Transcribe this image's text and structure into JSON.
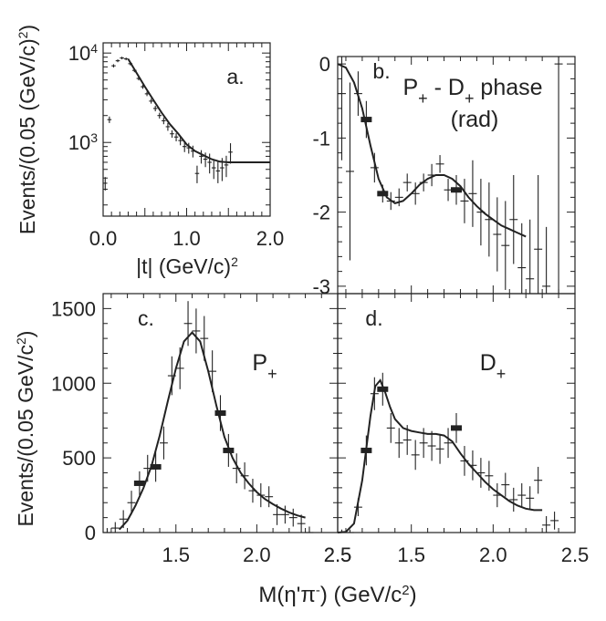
{
  "chart_data": [
    {
      "panel": "a",
      "type": "scatter",
      "label": "a.",
      "xlabel": "|t| (GeV/c)",
      "xlabel_sup": "2",
      "ylabel": "Events/(0.05 (GeV/c)",
      "ylabel_sup": "2",
      "ylabel_close": ")",
      "xlim": [
        0,
        2
      ],
      "ylim": [
        150,
        13000
      ],
      "yscale": "log",
      "xticks": [
        0,
        1,
        2
      ],
      "xtick_labels": [
        "0.0",
        "1.0",
        "2.0"
      ],
      "yticks": [
        1000,
        10000
      ],
      "ytick_labels": [
        {
          "base": "10",
          "exp": "3"
        },
        {
          "base": "10",
          "exp": "4"
        }
      ],
      "points": [
        {
          "x": 0.025,
          "y": 350,
          "ey": 60
        },
        {
          "x": 0.075,
          "y": 1800,
          "ey": 150
        },
        {
          "x": 0.125,
          "y": 7200,
          "ey": 300
        },
        {
          "x": 0.175,
          "y": 8200,
          "ey": 300
        },
        {
          "x": 0.225,
          "y": 8800,
          "ey": 300
        },
        {
          "x": 0.275,
          "y": 8600,
          "ey": 300
        },
        {
          "x": 0.325,
          "y": 7600,
          "ey": 300
        },
        {
          "x": 0.375,
          "y": 6400,
          "ey": 300
        },
        {
          "x": 0.425,
          "y": 5200,
          "ey": 250
        },
        {
          "x": 0.475,
          "y": 4200,
          "ey": 220
        },
        {
          "x": 0.525,
          "y": 3500,
          "ey": 200
        },
        {
          "x": 0.575,
          "y": 2900,
          "ey": 180
        },
        {
          "x": 0.625,
          "y": 2400,
          "ey": 170
        },
        {
          "x": 0.675,
          "y": 2000,
          "ey": 150
        },
        {
          "x": 0.725,
          "y": 1750,
          "ey": 150
        },
        {
          "x": 0.775,
          "y": 1500,
          "ey": 150
        },
        {
          "x": 0.825,
          "y": 1250,
          "ey": 120
        },
        {
          "x": 0.875,
          "y": 1150,
          "ey": 120
        },
        {
          "x": 0.925,
          "y": 1050,
          "ey": 120
        },
        {
          "x": 0.975,
          "y": 900,
          "ey": 120
        },
        {
          "x": 1.025,
          "y": 870,
          "ey": 120
        },
        {
          "x": 1.075,
          "y": 800,
          "ey": 120
        },
        {
          "x": 1.125,
          "y": 450,
          "ey": 100
        },
        {
          "x": 1.175,
          "y": 700,
          "ey": 120
        },
        {
          "x": 1.225,
          "y": 650,
          "ey": 120
        },
        {
          "x": 1.275,
          "y": 600,
          "ey": 150
        },
        {
          "x": 1.325,
          "y": 520,
          "ey": 130
        },
        {
          "x": 1.375,
          "y": 480,
          "ey": 130
        },
        {
          "x": 1.425,
          "y": 520,
          "ey": 150
        },
        {
          "x": 1.475,
          "y": 560,
          "ey": 150
        },
        {
          "x": 1.525,
          "y": 780,
          "ey": 200
        }
      ],
      "fit": [
        [
          0.3,
          8600
        ],
        [
          0.4,
          6000
        ],
        [
          0.5,
          4200
        ],
        [
          0.6,
          3000
        ],
        [
          0.7,
          2150
        ],
        [
          0.8,
          1600
        ],
        [
          0.9,
          1250
        ],
        [
          1.0,
          950
        ],
        [
          1.1,
          800
        ],
        [
          1.2,
          720
        ],
        [
          1.3,
          650
        ],
        [
          1.4,
          610
        ],
        [
          1.5,
          600
        ],
        [
          1.6,
          600
        ],
        [
          1.7,
          600
        ],
        [
          1.8,
          600
        ],
        [
          1.9,
          600
        ],
        [
          2.0,
          600
        ]
      ]
    },
    {
      "panel": "b",
      "type": "scatter",
      "label": "b.",
      "title_line1": "P",
      "title_sub1": "+",
      "title_mid": " - D",
      "title_sub2": "+",
      "title_tail": " phase",
      "title_line2": "(rad)",
      "xlim": [
        1.05,
        2.5
      ],
      "ylim": [
        -3.1,
        0.1
      ],
      "yticks": [
        0,
        -1,
        -2,
        -3
      ],
      "ytick_labels": [
        "0",
        "-1",
        "-2",
        "-3"
      ],
      "points": [
        {
          "x": 1.075,
          "y": -0.4,
          "ey": 0.9
        },
        {
          "x": 1.125,
          "y": -1.45,
          "ey": 1.2
        },
        {
          "x": 1.175,
          "y": -0.4,
          "ey": 0.3
        },
        {
          "x": 1.225,
          "y": -0.75,
          "ey": 0.25
        },
        {
          "x": 1.275,
          "y": -1.4,
          "ey": 0.2
        },
        {
          "x": 1.325,
          "y": -1.75,
          "ey": 0.12
        },
        {
          "x": 1.375,
          "y": -1.85,
          "ey": 0.12
        },
        {
          "x": 1.425,
          "y": -1.8,
          "ey": 0.12
        },
        {
          "x": 1.475,
          "y": -1.6,
          "ey": 0.12
        },
        {
          "x": 1.525,
          "y": -1.75,
          "ey": 0.15
        },
        {
          "x": 1.575,
          "y": -1.6,
          "ey": 0.12
        },
        {
          "x": 1.625,
          "y": -1.5,
          "ey": 0.15
        },
        {
          "x": 1.675,
          "y": -1.35,
          "ey": 0.12
        },
        {
          "x": 1.725,
          "y": -1.7,
          "ey": 0.15
        },
        {
          "x": 1.775,
          "y": -1.7,
          "ey": 0.2
        },
        {
          "x": 1.825,
          "y": -1.85,
          "ey": 0.3
        },
        {
          "x": 1.875,
          "y": -1.75,
          "ey": 0.45
        },
        {
          "x": 1.925,
          "y": -2.0,
          "ey": 0.45
        },
        {
          "x": 1.975,
          "y": -2.1,
          "ey": 0.5
        },
        {
          "x": 2.025,
          "y": -2.3,
          "ey": 0.5
        },
        {
          "x": 2.075,
          "y": -2.45,
          "ey": 0.6
        },
        {
          "x": 2.125,
          "y": -2.1,
          "ey": 0.6
        },
        {
          "x": 2.175,
          "y": -2.75,
          "ey": 0.6
        },
        {
          "x": 2.225,
          "y": -2.9,
          "ey": 0.8
        },
        {
          "x": 2.275,
          "y": -2.5,
          "ey": 1.0
        },
        {
          "x": 2.325,
          "y": -3.0,
          "ey": 0.8
        },
        {
          "x": 2.4,
          "y": 0.0,
          "ey": 3.1
        }
      ],
      "markers": [
        {
          "x": 1.225,
          "y": -0.75
        },
        {
          "x": 1.325,
          "y": -1.75
        },
        {
          "x": 1.775,
          "y": -1.7
        }
      ],
      "fit": [
        [
          1.05,
          0.0
        ],
        [
          1.1,
          -0.05
        ],
        [
          1.15,
          -0.25
        ],
        [
          1.2,
          -0.6
        ],
        [
          1.25,
          -1.1
        ],
        [
          1.3,
          -1.55
        ],
        [
          1.35,
          -1.8
        ],
        [
          1.4,
          -1.88
        ],
        [
          1.45,
          -1.85
        ],
        [
          1.5,
          -1.75
        ],
        [
          1.55,
          -1.63
        ],
        [
          1.6,
          -1.55
        ],
        [
          1.65,
          -1.5
        ],
        [
          1.7,
          -1.5
        ],
        [
          1.75,
          -1.55
        ],
        [
          1.8,
          -1.65
        ],
        [
          1.85,
          -1.8
        ],
        [
          1.9,
          -1.92
        ],
        [
          1.95,
          -2.02
        ],
        [
          2.0,
          -2.1
        ],
        [
          2.05,
          -2.18
        ],
        [
          2.1,
          -2.23
        ],
        [
          2.15,
          -2.28
        ],
        [
          2.2,
          -2.33
        ]
      ]
    },
    {
      "panel": "c",
      "type": "scatter",
      "label": "c.",
      "wave": "P",
      "wave_sub": "+",
      "ylabel": "Events/(0.05 GeV/c",
      "ylabel_sup": "2",
      "ylabel_close": ")",
      "xlim": [
        1.05,
        2.5
      ],
      "ylim": [
        0,
        1600
      ],
      "xticks": [
        1.5,
        2.0,
        2.5
      ],
      "xtick_labels": [
        "1.5",
        "2.0",
        "2.5"
      ],
      "yticks": [
        0,
        500,
        1000,
        1500
      ],
      "ytick_labels": [
        "0",
        "500",
        "1000",
        "1500"
      ],
      "points": [
        {
          "x": 1.075,
          "y": 0,
          "ey": 30
        },
        {
          "x": 1.125,
          "y": 30,
          "ey": 40
        },
        {
          "x": 1.175,
          "y": 90,
          "ey": 60
        },
        {
          "x": 1.225,
          "y": 200,
          "ey": 80
        },
        {
          "x": 1.275,
          "y": 330,
          "ey": 80
        },
        {
          "x": 1.325,
          "y": 430,
          "ey": 90
        },
        {
          "x": 1.375,
          "y": 440,
          "ey": 100
        },
        {
          "x": 1.425,
          "y": 600,
          "ey": 110
        },
        {
          "x": 1.475,
          "y": 1050,
          "ey": 130
        },
        {
          "x": 1.525,
          "y": 1100,
          "ey": 140
        },
        {
          "x": 1.575,
          "y": 1400,
          "ey": 150
        },
        {
          "x": 1.625,
          "y": 1350,
          "ey": 150
        },
        {
          "x": 1.675,
          "y": 1300,
          "ey": 150
        },
        {
          "x": 1.725,
          "y": 1080,
          "ey": 140
        },
        {
          "x": 1.775,
          "y": 800,
          "ey": 120
        },
        {
          "x": 1.825,
          "y": 550,
          "ey": 110
        },
        {
          "x": 1.875,
          "y": 430,
          "ey": 100
        },
        {
          "x": 1.925,
          "y": 380,
          "ey": 90
        },
        {
          "x": 1.975,
          "y": 280,
          "ey": 80
        },
        {
          "x": 2.025,
          "y": 250,
          "ey": 80
        },
        {
          "x": 2.075,
          "y": 240,
          "ey": 70
        },
        {
          "x": 2.125,
          "y": 120,
          "ey": 70
        },
        {
          "x": 2.175,
          "y": 120,
          "ey": 60
        },
        {
          "x": 2.225,
          "y": 100,
          "ey": 60
        },
        {
          "x": 2.275,
          "y": 60,
          "ey": 60
        },
        {
          "x": 2.325,
          "y": 0,
          "ey": 40
        }
      ],
      "markers": [
        {
          "x": 1.275,
          "y": 330
        },
        {
          "x": 1.375,
          "y": 440
        },
        {
          "x": 1.775,
          "y": 800
        },
        {
          "x": 1.825,
          "y": 550
        }
      ],
      "fit": [
        [
          1.15,
          20
        ],
        [
          1.2,
          80
        ],
        [
          1.25,
          180
        ],
        [
          1.3,
          300
        ],
        [
          1.35,
          450
        ],
        [
          1.4,
          650
        ],
        [
          1.45,
          880
        ],
        [
          1.5,
          1100
        ],
        [
          1.55,
          1280
        ],
        [
          1.6,
          1340
        ],
        [
          1.65,
          1280
        ],
        [
          1.7,
          1080
        ],
        [
          1.75,
          850
        ],
        [
          1.8,
          640
        ],
        [
          1.85,
          500
        ],
        [
          1.9,
          400
        ],
        [
          1.95,
          330
        ],
        [
          2.0,
          270
        ],
        [
          2.05,
          225
        ],
        [
          2.1,
          190
        ],
        [
          2.15,
          160
        ],
        [
          2.2,
          135
        ],
        [
          2.25,
          115
        ],
        [
          2.3,
          100
        ]
      ]
    },
    {
      "panel": "d",
      "type": "scatter",
      "label": "d.",
      "wave": "D",
      "wave_sub": "+",
      "xlim": [
        1.05,
        2.5
      ],
      "ylim": [
        0,
        1600
      ],
      "xticks": [
        1.5,
        2.0,
        2.5
      ],
      "xtick_labels": [
        "1.5",
        "2.0",
        "2.5"
      ],
      "shared_xlabel": "M(η'π",
      "shared_xlabel_sup": "-",
      "shared_xlabel_tail": ")  (GeV/c",
      "shared_xlabel_sup2": "2",
      "shared_xlabel_close": ")",
      "left_edge_tick_label": "2.5",
      "points": [
        {
          "x": 1.075,
          "y": 0,
          "ey": 20
        },
        {
          "x": 1.125,
          "y": 0,
          "ey": 20
        },
        {
          "x": 1.175,
          "y": 170,
          "ey": 60
        },
        {
          "x": 1.225,
          "y": 550,
          "ey": 100
        },
        {
          "x": 1.275,
          "y": 930,
          "ey": 110
        },
        {
          "x": 1.325,
          "y": 960,
          "ey": 110
        },
        {
          "x": 1.375,
          "y": 700,
          "ey": 100
        },
        {
          "x": 1.425,
          "y": 600,
          "ey": 100
        },
        {
          "x": 1.475,
          "y": 620,
          "ey": 100
        },
        {
          "x": 1.525,
          "y": 520,
          "ey": 100
        },
        {
          "x": 1.575,
          "y": 600,
          "ey": 100
        },
        {
          "x": 1.625,
          "y": 580,
          "ey": 100
        },
        {
          "x": 1.675,
          "y": 560,
          "ey": 100
        },
        {
          "x": 1.725,
          "y": 600,
          "ey": 100
        },
        {
          "x": 1.775,
          "y": 700,
          "ey": 100
        },
        {
          "x": 1.825,
          "y": 480,
          "ey": 100
        },
        {
          "x": 1.875,
          "y": 450,
          "ey": 100
        },
        {
          "x": 1.925,
          "y": 400,
          "ey": 100
        },
        {
          "x": 1.975,
          "y": 380,
          "ey": 100
        },
        {
          "x": 2.025,
          "y": 250,
          "ey": 80
        },
        {
          "x": 2.075,
          "y": 320,
          "ey": 80
        },
        {
          "x": 2.125,
          "y": 220,
          "ey": 80
        },
        {
          "x": 2.175,
          "y": 250,
          "ey": 80
        },
        {
          "x": 2.225,
          "y": 230,
          "ey": 80
        },
        {
          "x": 2.275,
          "y": 350,
          "ey": 90
        },
        {
          "x": 2.325,
          "y": 50,
          "ey": 60
        },
        {
          "x": 2.375,
          "y": 80,
          "ey": 60
        }
      ],
      "markers": [
        {
          "x": 1.225,
          "y": 550
        },
        {
          "x": 1.325,
          "y": 960
        },
        {
          "x": 1.775,
          "y": 700
        }
      ],
      "fit": [
        [
          1.05,
          0
        ],
        [
          1.1,
          5
        ],
        [
          1.15,
          60
        ],
        [
          1.2,
          350
        ],
        [
          1.25,
          780
        ],
        [
          1.28,
          980
        ],
        [
          1.31,
          1020
        ],
        [
          1.34,
          940
        ],
        [
          1.37,
          840
        ],
        [
          1.4,
          760
        ],
        [
          1.45,
          700
        ],
        [
          1.5,
          680
        ],
        [
          1.55,
          670
        ],
        [
          1.6,
          660
        ],
        [
          1.65,
          660
        ],
        [
          1.7,
          650
        ],
        [
          1.75,
          610
        ],
        [
          1.8,
          530
        ],
        [
          1.85,
          460
        ],
        [
          1.9,
          400
        ],
        [
          1.95,
          340
        ],
        [
          2.0,
          290
        ],
        [
          2.05,
          250
        ],
        [
          2.1,
          210
        ],
        [
          2.15,
          180
        ],
        [
          2.2,
          160
        ],
        [
          2.25,
          150
        ],
        [
          2.3,
          150
        ]
      ]
    }
  ]
}
